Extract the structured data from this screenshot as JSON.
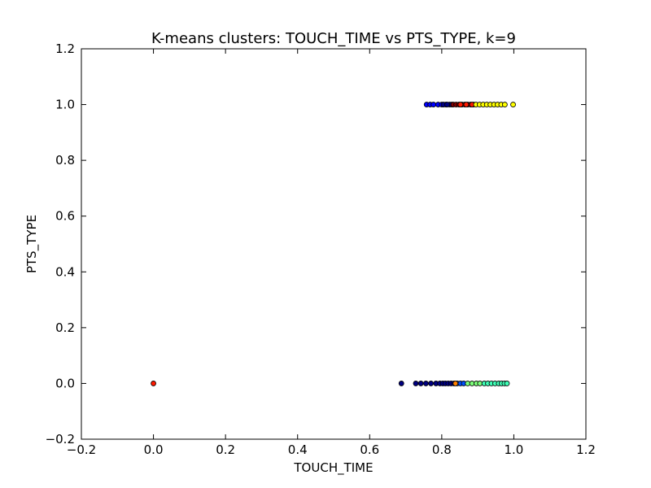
{
  "chart_data": {
    "type": "scatter",
    "title": "K-means clusters: TOUCH_TIME vs PTS_TYPE, k=9",
    "xlabel": "TOUCH_TIME",
    "ylabel": "PTS_TYPE",
    "xlim": [
      -0.2,
      1.2
    ],
    "ylim": [
      -0.2,
      1.2
    ],
    "xticks": [
      "−0.2",
      "0.0",
      "0.2",
      "0.4",
      "0.6",
      "0.8",
      "1.0",
      "1.2"
    ],
    "yticks": [
      "−0.2",
      "0.0",
      "0.2",
      "0.4",
      "0.6",
      "0.8",
      "1.0",
      "1.2"
    ],
    "grid": false,
    "legend": "none",
    "series": [
      {
        "color": "#ff1a00",
        "points": [
          [
            0.0,
            0.0
          ]
        ]
      },
      {
        "color": "#000080",
        "points": [
          [
            0.688,
            0.0
          ],
          [
            0.728,
            0.0
          ],
          [
            0.742,
            0.0
          ],
          [
            0.756,
            0.0
          ],
          [
            0.77,
            0.0
          ],
          [
            0.784,
            0.0
          ],
          [
            0.795,
            0.0
          ],
          [
            0.803,
            0.0
          ],
          [
            0.81,
            0.0
          ],
          [
            0.818,
            0.0
          ],
          [
            0.826,
            0.0
          ],
          [
            0.834,
            0.0
          ]
        ]
      },
      {
        "color": "#0050ff",
        "points": [
          [
            0.843,
            0.0
          ],
          [
            0.852,
            0.0
          ],
          [
            0.861,
            0.0
          ]
        ]
      },
      {
        "color": "#ff8000",
        "points": [
          [
            0.838,
            0.0
          ]
        ]
      },
      {
        "color": "#7dff7a",
        "points": [
          [
            0.872,
            0.0
          ],
          [
            0.884,
            0.0
          ],
          [
            0.896,
            0.0
          ],
          [
            0.906,
            0.0
          ]
        ]
      },
      {
        "color": "#40ffb7",
        "points": [
          [
            0.918,
            0.0
          ],
          [
            0.928,
            0.0
          ],
          [
            0.938,
            0.0
          ],
          [
            0.948,
            0.0
          ],
          [
            0.958,
            0.0
          ],
          [
            0.966,
            0.0
          ],
          [
            0.974,
            0.0
          ],
          [
            0.981,
            0.0
          ]
        ]
      },
      {
        "color": "#0000ff",
        "points": [
          [
            0.758,
            1.0
          ],
          [
            0.768,
            1.0
          ],
          [
            0.777,
            1.0
          ],
          [
            0.79,
            1.0
          ],
          [
            0.8,
            1.0
          ],
          [
            0.812,
            1.0
          ],
          [
            0.822,
            1.0
          ]
        ]
      },
      {
        "color": "#000080",
        "points": [
          [
            0.805,
            1.0
          ],
          [
            0.815,
            1.0
          ],
          [
            0.828,
            1.0
          ]
        ]
      },
      {
        "color": "#800000",
        "points": [
          [
            0.832,
            1.0
          ],
          [
            0.84,
            1.0
          ],
          [
            0.848,
            1.0
          ],
          [
            0.856,
            1.0
          ],
          [
            0.864,
            1.0
          ],
          [
            0.872,
            1.0
          ],
          [
            0.88,
            1.0
          ],
          [
            0.888,
            1.0
          ]
        ]
      },
      {
        "color": "#ff1a00",
        "points": [
          [
            0.852,
            1.0
          ],
          [
            0.868,
            1.0
          ],
          [
            0.884,
            1.0
          ]
        ]
      },
      {
        "color": "#ffff00",
        "points": [
          [
            0.895,
            1.0
          ],
          [
            0.905,
            1.0
          ],
          [
            0.915,
            1.0
          ],
          [
            0.925,
            1.0
          ],
          [
            0.935,
            1.0
          ],
          [
            0.945,
            1.0
          ],
          [
            0.955,
            1.0
          ],
          [
            0.965,
            1.0
          ],
          [
            0.975,
            1.0
          ],
          [
            0.998,
            1.0
          ]
        ]
      }
    ]
  }
}
